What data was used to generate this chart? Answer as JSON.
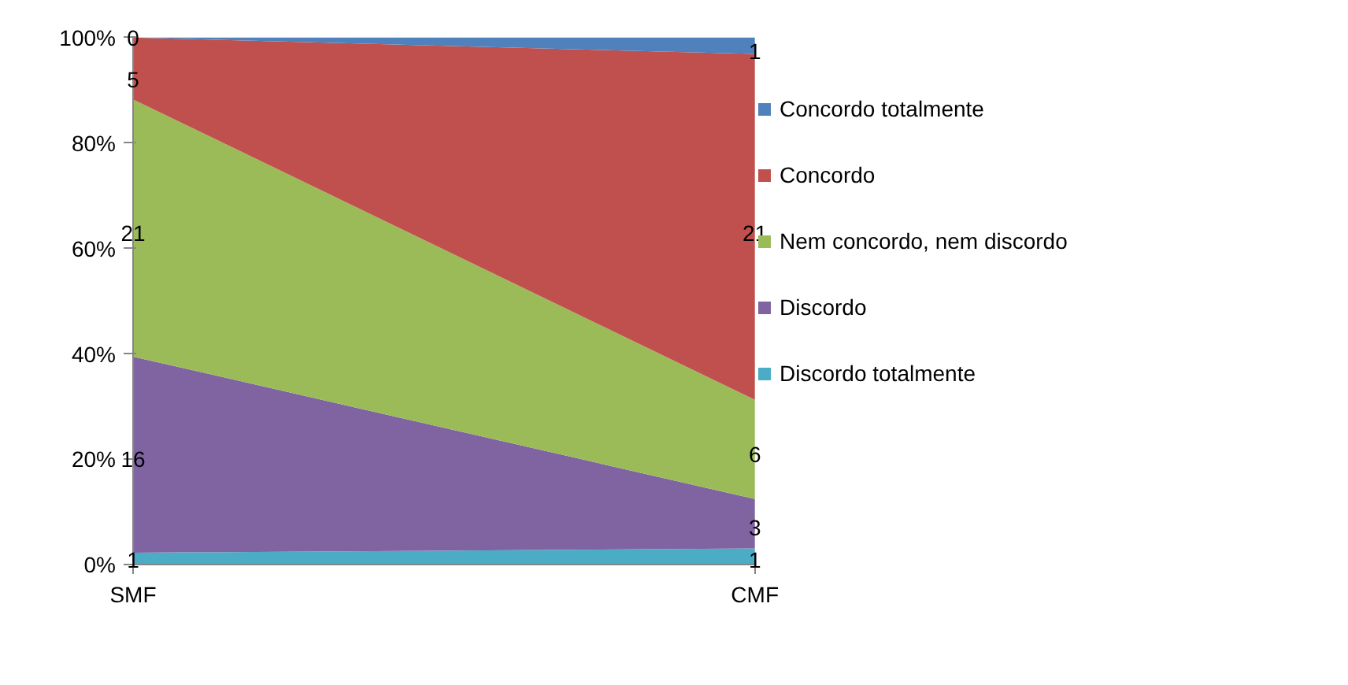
{
  "chart_data": {
    "type": "area",
    "stacked": true,
    "categories": [
      "SMF",
      "CMF"
    ],
    "ylim": [
      0,
      100
    ],
    "yticks": [
      {
        "value": 0,
        "label": "0%"
      },
      {
        "value": 20,
        "label": "20%"
      },
      {
        "value": 40,
        "label": "40%"
      },
      {
        "value": 60,
        "label": "60%"
      },
      {
        "value": 80,
        "label": "80%"
      },
      {
        "value": 100,
        "label": "100%"
      }
    ],
    "grid": false,
    "legend": "right",
    "series": [
      {
        "name": "Discordo totalmente",
        "color": "#4bacc6",
        "values": [
          2.3,
          3.1
        ]
      },
      {
        "name": "Discordo",
        "color": "#8064a2",
        "values": [
          37.2,
          9.4
        ]
      },
      {
        "name": "Nem concordo, nem discordo",
        "color": "#9bbb59",
        "values": [
          48.8,
          18.8
        ]
      },
      {
        "name": "Concordo",
        "color": "#c0504d",
        "values": [
          11.7,
          65.6
        ]
      },
      {
        "name": "Concordo totalmente",
        "color": "#4f81bd",
        "values": [
          0,
          3.1
        ]
      }
    ],
    "annotations": [
      {
        "text": "1",
        "x": "SMF",
        "y": 1
      },
      {
        "text": "16",
        "x": "SMF",
        "y": 20
      },
      {
        "text": "21",
        "x": "SMF",
        "y": 63
      },
      {
        "text": "5",
        "x": "SMF",
        "y": 92
      },
      {
        "text": "0",
        "x": "SMF",
        "y": 100
      },
      {
        "text": "1",
        "x": "CMF",
        "y": 1
      },
      {
        "text": "3",
        "x": "CMF",
        "y": 7
      },
      {
        "text": "6",
        "x": "CMF",
        "y": 21
      },
      {
        "text": "21",
        "x": "CMF",
        "y": 63
      },
      {
        "text": "1",
        "x": "CMF",
        "y": 97.5
      }
    ]
  }
}
